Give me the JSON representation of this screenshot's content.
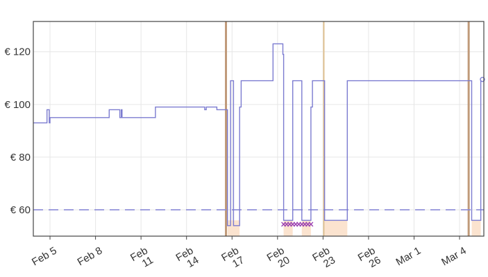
{
  "chart_data": {
    "type": "line",
    "title": "",
    "xlabel": "",
    "ylabel": "",
    "y_ticks": [
      {
        "value": 60,
        "label": "€ 60"
      },
      {
        "value": 80,
        "label": "€ 80"
      },
      {
        "value": 100,
        "label": "€ 100"
      },
      {
        "value": 120,
        "label": "€ 120"
      }
    ],
    "ylim": [
      50,
      131.5
    ],
    "xlim": [
      3.9,
      33.6
    ],
    "x_unit": "days (Feb 1 = 1, Mar 1 = 29)",
    "x_ticks": [
      {
        "day": 5,
        "lines": [
          "Feb 5"
        ]
      },
      {
        "day": 8,
        "lines": [
          "Feb 8"
        ]
      },
      {
        "day": 11,
        "lines": [
          "Feb",
          "11"
        ]
      },
      {
        "day": 14,
        "lines": [
          "Feb",
          "14"
        ]
      },
      {
        "day": 17,
        "lines": [
          "Feb",
          "17"
        ]
      },
      {
        "day": 20,
        "lines": [
          "Feb",
          "20"
        ]
      },
      {
        "day": 23,
        "lines": [
          "Feb",
          "23"
        ]
      },
      {
        "day": 26,
        "lines": [
          "Feb",
          "26"
        ]
      },
      {
        "day": 29,
        "lines": [
          "Mar 1"
        ]
      },
      {
        "day": 32,
        "lines": [
          "Mar 4"
        ]
      }
    ],
    "grid": true,
    "reference_line": {
      "value": 60,
      "style": "dashed"
    },
    "colors": {
      "price": "#7b7bd0",
      "reference": "#8a8ad8",
      "event_line": "#c09a7a",
      "event_line_alt": "#e0c090",
      "shade": "#fbe3cf",
      "marker_x": "#9a3fb0",
      "grid": "#e6e6e6",
      "axis": "#444444"
    },
    "series": [
      {
        "name": "",
        "step": true,
        "points": [
          [
            3.9,
            93
          ],
          [
            4.8,
            93
          ],
          [
            4.8,
            98
          ],
          [
            4.95,
            98
          ],
          [
            4.95,
            93
          ],
          [
            5.0,
            93
          ],
          [
            5.0,
            95
          ],
          [
            8.9,
            95
          ],
          [
            8.9,
            98
          ],
          [
            9.6,
            98
          ],
          [
            9.6,
            95
          ],
          [
            9.7,
            95
          ],
          [
            9.7,
            98
          ],
          [
            9.75,
            98
          ],
          [
            9.75,
            95
          ],
          [
            11.95,
            95
          ],
          [
            11.95,
            99
          ],
          [
            15.2,
            99
          ],
          [
            15.2,
            98
          ],
          [
            15.3,
            98
          ],
          [
            15.3,
            99
          ],
          [
            16.0,
            99
          ],
          [
            16.0,
            98
          ],
          [
            16.7,
            98
          ],
          [
            16.7,
            54
          ],
          [
            16.9,
            54
          ],
          [
            16.9,
            109
          ],
          [
            17.1,
            109
          ],
          [
            17.1,
            54
          ],
          [
            17.5,
            54
          ],
          [
            17.5,
            99
          ],
          [
            17.6,
            99
          ],
          [
            17.6,
            109
          ],
          [
            19.7,
            109
          ],
          [
            19.7,
            123
          ],
          [
            20.35,
            123
          ],
          [
            20.35,
            119
          ],
          [
            20.4,
            119
          ],
          [
            20.4,
            56
          ],
          [
            21.0,
            56
          ],
          [
            21.0,
            109
          ],
          [
            21.6,
            109
          ],
          [
            21.6,
            56
          ],
          [
            22.2,
            56
          ],
          [
            22.2,
            99
          ],
          [
            22.3,
            99
          ],
          [
            22.3,
            109
          ],
          [
            23.1,
            109
          ],
          [
            23.1,
            56
          ],
          [
            24.6,
            56
          ],
          [
            24.6,
            109
          ],
          [
            32.8,
            109
          ],
          [
            32.8,
            56
          ],
          [
            33.4,
            56
          ],
          [
            33.4,
            109.5
          ],
          [
            33.6,
            109.5
          ]
        ]
      }
    ],
    "event_lines": [
      {
        "day": 16.6,
        "kind": "main"
      },
      {
        "day": 23.05,
        "kind": "alt"
      },
      {
        "day": 32.6,
        "kind": "main"
      }
    ],
    "shaded_intervals": [
      [
        16.7,
        17.5
      ],
      [
        20.4,
        21.0
      ],
      [
        21.6,
        22.2
      ],
      [
        23.1,
        24.6
      ],
      [
        32.8,
        33.4
      ]
    ],
    "x_markers": {
      "y": 54.5,
      "days": [
        20.4,
        20.6,
        20.8,
        21.0,
        21.2,
        21.4,
        21.6,
        21.8,
        22.0,
        22.2
      ]
    },
    "end_point": {
      "day": 33.6,
      "value": 109.5
    }
  }
}
